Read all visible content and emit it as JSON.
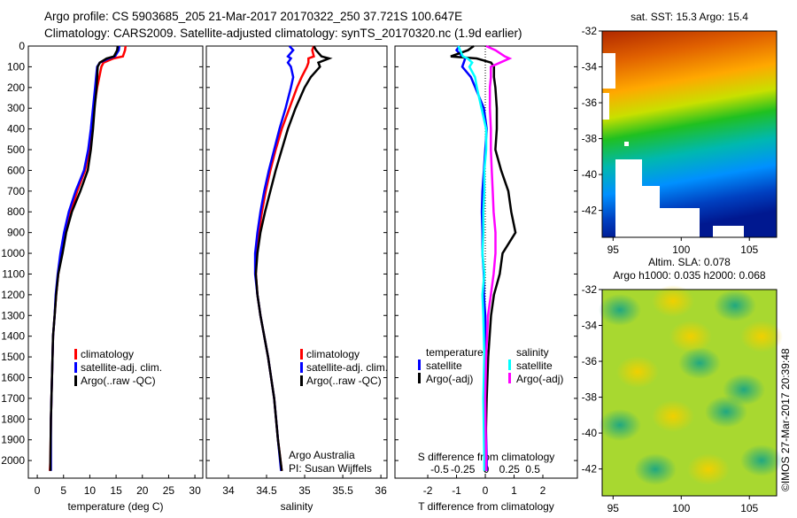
{
  "header": {
    "line1": "Argo profile: CS 5903685_205 21-Mar-2017 20170322_250 37.721S 100.647E",
    "line2": "Climatology: CARS2009. Satellite-adjusted climatology: synTS_20170320.nc (1.9d earlier)"
  },
  "colors": {
    "climatology": "#ff0000",
    "satellite": "#0000ff",
    "argo": "#000000",
    "sal_satellite": "#00ffff",
    "sal_argo": "#ff00ff"
  },
  "chart_data": [
    {
      "type": "line",
      "id": "temperature",
      "xlabel": "temperature (deg C)",
      "xlim": [
        -1.7,
        31.5
      ],
      "ylim": [
        2085,
        0
      ],
      "xticks": [
        0,
        5,
        10,
        15,
        20,
        25,
        30
      ],
      "yticks": [
        0,
        100,
        200,
        300,
        400,
        500,
        600,
        700,
        800,
        900,
        1000,
        1100,
        1200,
        1300,
        1400,
        1500,
        1600,
        1700,
        1800,
        1900,
        2000
      ],
      "legend": [
        "climatology",
        "satellite-adj. clim.",
        "Argo(..raw -QC)"
      ],
      "depth": [
        0,
        20,
        50,
        60,
        80,
        100,
        150,
        200,
        300,
        400,
        500,
        600,
        700,
        800,
        900,
        1000,
        1100,
        1200,
        1300,
        1400,
        1600,
        1800,
        2000,
        2050
      ],
      "series": [
        {
          "name": "climatology",
          "color_key": "climatology",
          "values": [
            16.8,
            16.7,
            16.3,
            14.5,
            12.6,
            12.2,
            11.8,
            11.4,
            10.8,
            10.3,
            9.9,
            9.1,
            7.6,
            6.4,
            5.4,
            4.6,
            4.0,
            3.6,
            3.3,
            3.0,
            2.8,
            2.6,
            2.5,
            2.4
          ]
        },
        {
          "name": "satellite-adj. clim.",
          "color_key": "satellite",
          "values": [
            15.6,
            15.5,
            14.8,
            13.6,
            11.9,
            11.4,
            11.2,
            11.0,
            10.6,
            10.2,
            9.7,
            8.9,
            7.3,
            6.0,
            5.1,
            4.4,
            3.9,
            3.5,
            3.3,
            3.0,
            2.8,
            2.6,
            2.6,
            2.6
          ]
        },
        {
          "name": "Argo(..raw -QC)",
          "color_key": "argo",
          "values": [
            15.3,
            15.2,
            14.6,
            13.2,
            11.9,
            11.5,
            11.4,
            11.3,
            10.9,
            10.6,
            10.2,
            9.6,
            8.2,
            6.6,
            5.5,
            4.8,
            4.0,
            3.6,
            3.3,
            3.0,
            2.8,
            2.6,
            2.5,
            2.5
          ]
        }
      ]
    },
    {
      "type": "line",
      "id": "salinity",
      "xlabel": "salinity",
      "xlim": [
        33.71,
        36.08
      ],
      "ylim": [
        2085,
        0
      ],
      "xticks": [
        34,
        34.5,
        35,
        35.5,
        36
      ],
      "legend": [
        "climatology",
        "satellite-adj. clim.",
        "Argo(..raw -QC)"
      ],
      "annotation": [
        "Argo Australia",
        "PI: Susan Wijffels"
      ],
      "depth": [
        0,
        20,
        50,
        60,
        80,
        100,
        150,
        200,
        300,
        400,
        500,
        600,
        700,
        800,
        900,
        1000,
        1100,
        1200,
        1300,
        1400,
        1500,
        1700,
        1900,
        2050
      ],
      "series": [
        {
          "name": "climatology",
          "color_key": "climatology",
          "values": [
            35.12,
            35.1,
            35.12,
            35.05,
            35.05,
            35.03,
            34.96,
            34.9,
            34.8,
            34.7,
            34.62,
            34.55,
            34.49,
            34.44,
            34.4,
            34.37,
            34.36,
            34.38,
            34.42,
            34.47,
            34.52,
            34.6,
            34.65,
            34.7
          ]
        },
        {
          "name": "satellite-adj. clim.",
          "color_key": "satellite",
          "values": [
            34.8,
            34.85,
            34.78,
            34.82,
            34.78,
            34.82,
            34.85,
            34.82,
            34.75,
            34.67,
            34.6,
            34.53,
            34.47,
            34.42,
            34.38,
            34.35,
            34.35,
            34.38,
            34.42,
            34.47,
            34.52,
            34.6,
            34.65,
            34.69
          ]
        },
        {
          "name": "Argo(..raw -QC)",
          "color_key": "argo",
          "values": [
            35.12,
            35.15,
            35.22,
            35.32,
            35.18,
            35.2,
            35.08,
            35.0,
            34.88,
            34.78,
            34.7,
            34.62,
            34.55,
            34.48,
            34.42,
            34.38,
            34.36,
            34.38,
            34.42,
            34.47,
            34.52,
            34.6,
            34.65,
            34.7
          ]
        }
      ]
    },
    {
      "type": "line",
      "id": "difference",
      "xlabel": "T difference from climatology",
      "x2label": "S difference from climatology",
      "xlim": [
        -3.14,
        3.2
      ],
      "x2lim": [
        -0.98,
        0.98
      ],
      "ylim": [
        2085,
        0
      ],
      "xticks": [
        -2,
        -1,
        0,
        1,
        2
      ],
      "x2ticks": [
        -0.5,
        -0.25,
        0,
        0.25,
        0.5
      ],
      "legend_temperature": {
        "title": "temperature",
        "items": [
          "satellite",
          "Argo(-adj)"
        ]
      },
      "legend_salinity": {
        "title": "salinity",
        "items": [
          "satellite",
          "Argo(-adj)"
        ]
      },
      "depth": [
        0,
        20,
        50,
        60,
        80,
        100,
        150,
        200,
        300,
        400,
        500,
        600,
        700,
        800,
        900,
        1000,
        1100,
        1200,
        1300,
        1500,
        1700,
        2000,
        2050
      ],
      "series": [
        {
          "name": "temperature satellite",
          "axis": "T",
          "color_key": "satellite",
          "values": [
            -0.9,
            -1.0,
            -0.8,
            -0.7,
            -0.75,
            -0.8,
            -0.5,
            -0.35,
            -0.05,
            0.05,
            0.0,
            -0.05,
            -0.1,
            -0.12,
            -0.1,
            -0.1,
            -0.05,
            -0.05,
            0.0,
            0.0,
            0.0,
            0.05,
            0.05
          ]
        },
        {
          "name": "temperature Argo(-adj)",
          "axis": "T",
          "color_key": "argo",
          "values": [
            -0.4,
            -0.6,
            -1.2,
            -0.3,
            0.2,
            0.3,
            0.3,
            0.35,
            0.4,
            0.4,
            0.35,
            0.55,
            0.8,
            0.9,
            1.05,
            0.6,
            0.5,
            0.3,
            0.2,
            0.1,
            0.05,
            0.0,
            0.0
          ]
        },
        {
          "name": "salinity satellite",
          "axis": "S",
          "color_key": "sal_satellite",
          "values": [
            -0.3,
            -0.28,
            -0.25,
            -0.2,
            -0.15,
            -0.18,
            -0.12,
            -0.1,
            -0.05,
            0.0,
            0.0,
            -0.02,
            -0.02,
            -0.03,
            -0.03,
            -0.04,
            -0.02,
            -0.04,
            -0.03,
            -0.02,
            -0.03,
            -0.02,
            -0.02
          ]
        },
        {
          "name": "salinity Argo(-adj)",
          "axis": "S",
          "color_key": "sal_argo",
          "values": [
            0.0,
            0.1,
            0.2,
            0.25,
            0.15,
            0.05,
            0.05,
            0.04,
            0.04,
            0.05,
            0.05,
            0.06,
            0.07,
            0.08,
            0.1,
            0.1,
            0.08,
            0.05,
            0.02,
            0.0,
            -0.01,
            0.0,
            0.0
          ]
        }
      ]
    },
    {
      "type": "heatmap",
      "id": "sst-map",
      "title": "sat. SST: 15.3 Argo: 15.4",
      "xlim": [
        94.2,
        107
      ],
      "ylim": [
        -32,
        -43.5
      ],
      "xticks": [
        95,
        100,
        105
      ],
      "yticks": [
        -32,
        -34,
        -36,
        -38,
        -40,
        -42
      ]
    },
    {
      "type": "heatmap",
      "id": "sla-map",
      "title_line1": "Altim. SLA: 0.078",
      "title_line2": "Argo h1000: 0.035 h2000: 0.068",
      "xlim": [
        94.2,
        107
      ],
      "ylim": [
        -32,
        -43.5
      ],
      "xticks": [
        95,
        100,
        105
      ],
      "yticks": [
        -32,
        -34,
        -36,
        -38,
        -40,
        -42
      ]
    }
  ],
  "credit": "©IMOS 27-Mar-2017 20:39:48"
}
